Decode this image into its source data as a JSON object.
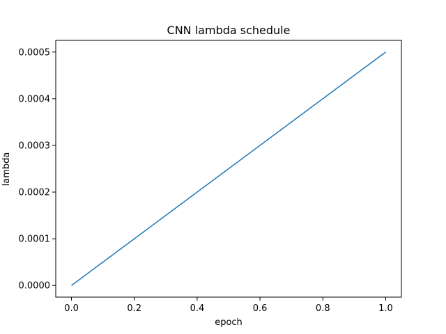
{
  "chart_data": {
    "type": "line",
    "title": "CNN lambda schedule",
    "xlabel": "epoch",
    "ylabel": "lambda",
    "xlim": [
      -0.05,
      1.05
    ],
    "ylim": [
      -2.5e-05,
      0.000525
    ],
    "xticks": [
      0.0,
      0.2,
      0.4,
      0.6,
      0.8,
      1.0
    ],
    "xtick_labels": [
      "0.0",
      "0.2",
      "0.4",
      "0.6",
      "0.8",
      "1.0"
    ],
    "yticks": [
      0.0,
      0.0001,
      0.0002,
      0.0003,
      0.0004,
      0.0005
    ],
    "ytick_labels": [
      "0.0000",
      "0.0001",
      "0.0002",
      "0.0003",
      "0.0004",
      "0.0005"
    ],
    "grid": false,
    "legend": "none",
    "series": [
      {
        "color": "#1f77b4",
        "x": [
          0.0,
          1.0
        ],
        "y": [
          0.0,
          0.0005
        ]
      }
    ]
  }
}
